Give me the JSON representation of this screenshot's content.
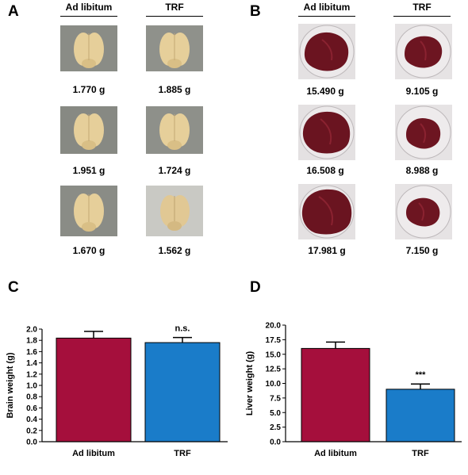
{
  "panels": {
    "a": {
      "letter": "A",
      "headers": [
        "Ad libitum",
        "TRF"
      ],
      "weights": [
        "1.770 g",
        "1.885 g",
        "1.951 g",
        "1.724 g",
        "1.670 g",
        "1.562 g"
      ]
    },
    "b": {
      "letter": "B",
      "headers": [
        "Ad libitum",
        "TRF"
      ],
      "weights": [
        "15.490 g",
        "9.105 g",
        "16.508 g",
        "8.988 g",
        "17.981 g",
        "7.150 g"
      ]
    },
    "c": {
      "letter": "C"
    },
    "d": {
      "letter": "D"
    }
  },
  "colors": {
    "ad_libitum": "#A50F3C",
    "trf": "#1A7CC9",
    "brain_photo_bg": "#8a8c86",
    "brain": "#e6cf9a",
    "liver": "#6b1420",
    "liver_dish": "#ece9ea"
  },
  "chart_data": [
    {
      "type": "bar",
      "categories": [
        "Ad libitum",
        "TRF"
      ],
      "values": [
        1.84,
        1.76
      ],
      "errors": [
        0.12,
        0.09
      ],
      "annotations": [
        "",
        "n.s."
      ],
      "ylabel": "Brain weight (g)",
      "ylim": [
        0,
        2.0
      ],
      "yticks": [
        "0.0",
        "0.2",
        "0.4",
        "0.6",
        "0.8",
        "1.0",
        "1.2",
        "1.4",
        "1.6",
        "1.8",
        "2.0"
      ],
      "bar_colors": [
        "#A50F3C",
        "#1A7CC9"
      ]
    },
    {
      "type": "bar",
      "categories": [
        "Ad libitum",
        "TRF"
      ],
      "values": [
        16.0,
        9.0
      ],
      "errors": [
        1.1,
        0.9
      ],
      "annotations": [
        "",
        "***"
      ],
      "ylabel": "Liver weight (g)",
      "ylim": [
        0,
        20.0
      ],
      "yticks": [
        "0.0",
        "2.5",
        "5.0",
        "7.5",
        "10.0",
        "12.5",
        "15.0",
        "17.5",
        "20.0"
      ],
      "bar_colors": [
        "#A50F3C",
        "#1A7CC9"
      ]
    }
  ]
}
